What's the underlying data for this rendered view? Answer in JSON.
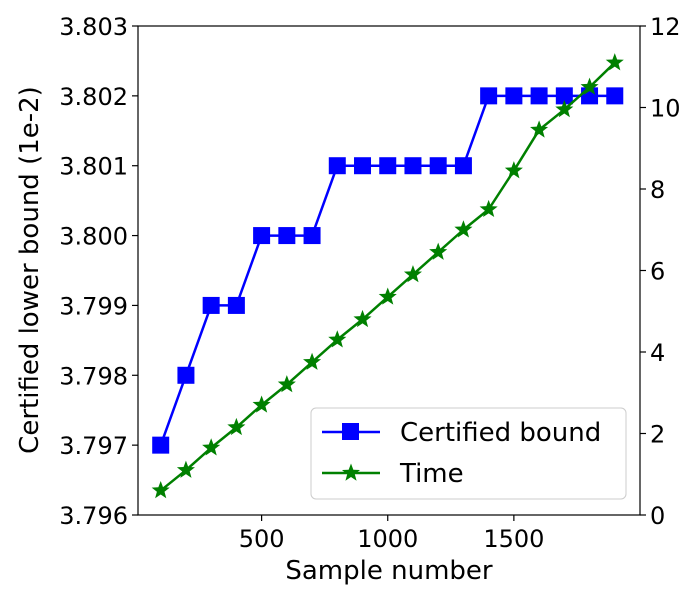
{
  "chart_data": {
    "type": "line",
    "xlabel": "Sample number",
    "ylabel_left": "Certified lower bound (1e-2)",
    "ylabel_right": "",
    "x_ticks": [
      "500",
      "1000",
      "1500"
    ],
    "left_ticks": [
      "3.796",
      "3.797",
      "3.798",
      "3.799",
      "3.800",
      "3.801",
      "3.802",
      "3.803"
    ],
    "right_ticks": [
      "0",
      "2",
      "4",
      "6",
      "8",
      "10",
      "12"
    ],
    "xlim": [
      10,
      2000
    ],
    "ylim_left": [
      3.796,
      3.803
    ],
    "ylim_right": [
      0,
      12
    ],
    "legend_position": "lower right",
    "series": [
      {
        "name": "Certified bound",
        "axis": "left",
        "color": "#0000ff",
        "marker": "square",
        "x": [
          100,
          200,
          300,
          400,
          500,
          600,
          700,
          800,
          900,
          1000,
          1100,
          1200,
          1300,
          1400,
          1500,
          1600,
          1700,
          1800,
          1900
        ],
        "y": [
          3.797,
          3.798,
          3.799,
          3.799,
          3.8,
          3.8,
          3.8,
          3.801,
          3.801,
          3.801,
          3.801,
          3.801,
          3.801,
          3.802,
          3.802,
          3.802,
          3.802,
          3.802,
          3.802
        ]
      },
      {
        "name": "Time",
        "axis": "right",
        "color": "#008000",
        "marker": "star",
        "x": [
          100,
          200,
          300,
          400,
          500,
          600,
          700,
          800,
          900,
          1000,
          1100,
          1200,
          1300,
          1400,
          1500,
          1600,
          1700,
          1800,
          1900
        ],
        "y": [
          0.6,
          1.1,
          1.65,
          2.15,
          2.7,
          3.2,
          3.75,
          4.3,
          4.8,
          5.35,
          5.9,
          6.45,
          7.0,
          7.5,
          8.45,
          9.45,
          9.95,
          10.5,
          11.1
        ]
      }
    ]
  }
}
